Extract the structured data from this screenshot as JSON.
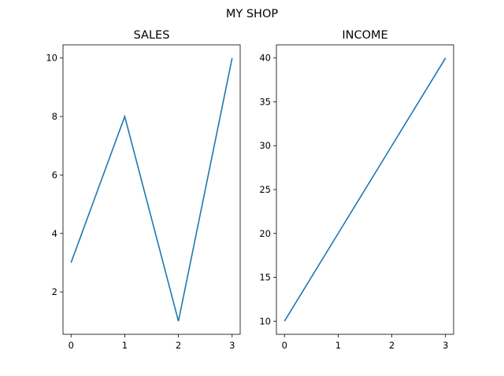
{
  "suptitle": "MY SHOP",
  "line_color": "#1f77b4",
  "chart_data": [
    {
      "type": "line",
      "title": "SALES",
      "x": [
        0,
        1,
        2,
        3
      ],
      "y": [
        3,
        8,
        1,
        10
      ],
      "xlim": [
        -0.15,
        3.15
      ],
      "ylim": [
        0.55,
        10.45
      ],
      "xticks": [
        0,
        1,
        2,
        3
      ],
      "yticks": [
        2,
        4,
        6,
        8,
        10
      ],
      "grid": false
    },
    {
      "type": "line",
      "title": "INCOME",
      "x": [
        0,
        1,
        2,
        3
      ],
      "y": [
        10,
        20,
        30,
        40
      ],
      "xlim": [
        -0.15,
        3.15
      ],
      "ylim": [
        8.5,
        41.5
      ],
      "xticks": [
        0,
        1,
        2,
        3
      ],
      "yticks": [
        10,
        15,
        20,
        25,
        30,
        35,
        40
      ],
      "grid": false
    }
  ]
}
